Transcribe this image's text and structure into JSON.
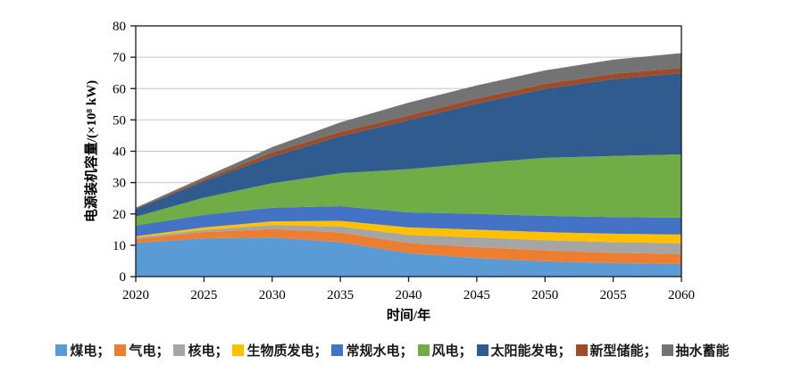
{
  "figure": {
    "background": "#ffffff",
    "frame_color": "#1a1a1a",
    "gridline_color": "#c6c6c6"
  },
  "chart_data": {
    "type": "area",
    "stacked": true,
    "title": "",
    "xlabel": "时间/年",
    "ylabel": "电源装机容量/(×10⁸ kW)",
    "x": [
      2020,
      2025,
      2030,
      2035,
      2040,
      2045,
      2050,
      2055,
      2060
    ],
    "xticks": [
      "2020",
      "2025",
      "2030",
      "2035",
      "2040",
      "2045",
      "2050",
      "2055",
      "2060"
    ],
    "ylim": [
      0,
      80
    ],
    "yticks": [
      "0",
      "10",
      "20",
      "30",
      "40",
      "50",
      "60",
      "70",
      "80"
    ],
    "grid": "horizontal",
    "legend_position": "bottom",
    "legend_separator": "；",
    "series": [
      {
        "key": "coal",
        "name": "煤电",
        "color": "#5B9BD5",
        "values": [
          10.8,
          12.2,
          12.5,
          11.0,
          7.5,
          5.9,
          4.9,
          4.3,
          4.0
        ]
      },
      {
        "key": "gas",
        "name": "气电",
        "color": "#ED7D31",
        "values": [
          1.2,
          2.0,
          2.7,
          3.1,
          3.2,
          3.5,
          3.5,
          3.3,
          3.2
        ]
      },
      {
        "key": "nuclear",
        "name": "核电",
        "color": "#A5A5A5",
        "values": [
          0.5,
          0.7,
          1.2,
          1.9,
          2.6,
          3.1,
          3.2,
          3.4,
          3.4
        ]
      },
      {
        "key": "biomass",
        "name": "生物质发电",
        "color": "#FFC000",
        "values": [
          0.4,
          0.8,
          1.2,
          1.8,
          2.4,
          2.5,
          2.6,
          2.7,
          2.8
        ]
      },
      {
        "key": "hydro",
        "name": "常规水电",
        "color": "#4472C4",
        "values": [
          3.4,
          4.0,
          4.4,
          4.7,
          4.8,
          5.0,
          5.2,
          5.3,
          5.4
        ]
      },
      {
        "key": "wind",
        "name": "风电",
        "color": "#70AD47",
        "values": [
          2.8,
          5.5,
          7.8,
          10.5,
          13.8,
          16.2,
          18.5,
          19.5,
          20.2
        ]
      },
      {
        "key": "solar",
        "name": "太阳能发电",
        "color": "#2F5B8F",
        "values": [
          2.5,
          5.2,
          8.5,
          11.8,
          15.6,
          19.0,
          22.0,
          24.5,
          25.9
        ]
      },
      {
        "key": "new-storage",
        "name": "新型储能",
        "color": "#9E4B28",
        "values": [
          0.1,
          0.6,
          1.3,
          1.4,
          1.5,
          1.6,
          1.6,
          1.7,
          1.7
        ]
      },
      {
        "key": "pumped-storage",
        "name": "抽水蓄能",
        "color": "#737373",
        "values": [
          0.3,
          0.7,
          1.7,
          3.0,
          4.1,
          4.2,
          4.3,
          4.5,
          4.7
        ]
      }
    ]
  }
}
